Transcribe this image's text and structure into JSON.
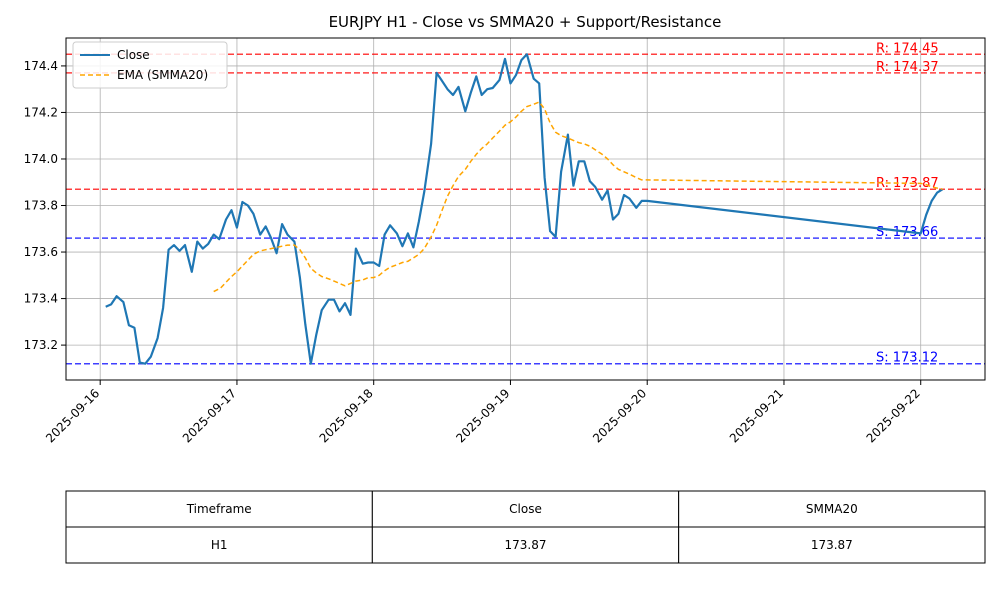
{
  "chart_data": {
    "type": "line",
    "title": "EURJPY H1 - Close vs SMMA20 + Support/Resistance",
    "xlabel": "",
    "ylabel": "",
    "x_tick_labels": [
      "2025-09-16",
      "2025-09-17",
      "2025-09-18",
      "2025-09-19",
      "2025-09-20",
      "2025-09-21",
      "2025-09-22"
    ],
    "y_ticks": [
      173.2,
      173.4,
      173.6,
      173.8,
      174.0,
      174.2,
      174.4
    ],
    "y_tick_labels": [
      "173.2",
      "173.4",
      "173.6",
      "173.8",
      "174.0",
      "174.2",
      "174.4"
    ],
    "ylim": [
      173.05,
      174.52
    ],
    "xlim_days": [
      -0.25,
      6.47
    ],
    "grid": true,
    "legend_position": "top-left",
    "series": [
      {
        "name": "Close",
        "color": "#1f77b4",
        "x": [
          0.04,
          0.08,
          0.12,
          0.17,
          0.21,
          0.25,
          0.29,
          0.33,
          0.37,
          0.42,
          0.46,
          0.5,
          0.54,
          0.58,
          0.62,
          0.67,
          0.71,
          0.75,
          0.79,
          0.83,
          0.87,
          0.92,
          0.96,
          1.0,
          1.04,
          1.08,
          1.12,
          1.17,
          1.21,
          1.25,
          1.29,
          1.33,
          1.37,
          1.42,
          1.46,
          1.5,
          1.54,
          1.58,
          1.62,
          1.67,
          1.71,
          1.75,
          1.79,
          1.83,
          1.87,
          1.92,
          1.96,
          2.0,
          2.04,
          2.08,
          2.12,
          2.17,
          2.21,
          2.25,
          2.29,
          2.33,
          2.37,
          2.42,
          2.46,
          2.5,
          2.54,
          2.58,
          2.62,
          2.67,
          2.71,
          2.75,
          2.79,
          2.83,
          2.87,
          2.92,
          2.96,
          3.0,
          3.04,
          3.08,
          3.12,
          3.17,
          3.21,
          3.25,
          3.29,
          3.33,
          3.37,
          3.42,
          3.46,
          3.5,
          3.54,
          3.58,
          3.62,
          3.67,
          3.71,
          3.75,
          3.79,
          3.83,
          3.87,
          3.92,
          3.96,
          4.0,
          6.0,
          6.04,
          6.08,
          6.12,
          6.16
        ],
        "values": [
          173.365,
          173.375,
          173.41,
          173.385,
          173.285,
          173.275,
          173.125,
          173.12,
          173.15,
          173.23,
          173.36,
          173.61,
          173.63,
          173.605,
          173.63,
          173.515,
          173.645,
          173.615,
          173.635,
          173.675,
          173.655,
          173.74,
          173.78,
          173.705,
          173.815,
          173.8,
          173.765,
          173.675,
          173.71,
          173.66,
          173.595,
          173.72,
          173.675,
          173.645,
          173.49,
          173.29,
          173.12,
          173.245,
          173.35,
          173.395,
          173.395,
          173.345,
          173.38,
          173.33,
          173.615,
          173.55,
          173.555,
          173.555,
          173.54,
          173.675,
          173.715,
          173.68,
          173.625,
          173.68,
          173.62,
          173.73,
          173.86,
          174.065,
          174.37,
          174.335,
          174.3,
          174.275,
          174.31,
          174.205,
          174.285,
          174.355,
          174.275,
          174.3,
          174.305,
          174.34,
          174.43,
          174.325,
          174.36,
          174.425,
          174.45,
          174.345,
          174.325,
          173.92,
          173.69,
          173.665,
          173.945,
          174.105,
          173.885,
          173.99,
          173.99,
          173.905,
          173.88,
          173.825,
          173.865,
          173.74,
          173.765,
          173.845,
          173.83,
          173.79,
          173.82,
          173.82,
          173.68,
          173.76,
          173.82,
          173.855,
          173.87
        ]
      },
      {
        "name": "EMA (SMMA20)",
        "color": "#ffa500",
        "x": [
          0.83,
          0.88,
          0.92,
          0.96,
          1.0,
          1.04,
          1.08,
          1.12,
          1.17,
          1.21,
          1.25,
          1.29,
          1.33,
          1.37,
          1.42,
          1.46,
          1.5,
          1.54,
          1.58,
          1.62,
          1.67,
          1.71,
          1.75,
          1.79,
          1.83,
          1.87,
          1.92,
          1.96,
          2.0,
          2.04,
          2.08,
          2.12,
          2.17,
          2.21,
          2.25,
          2.29,
          2.33,
          2.37,
          2.42,
          2.46,
          2.5,
          2.54,
          2.58,
          2.62,
          2.67,
          2.71,
          2.75,
          2.79,
          2.83,
          2.87,
          2.92,
          2.96,
          3.0,
          3.04,
          3.08,
          3.12,
          3.17,
          3.21,
          3.25,
          3.29,
          3.33,
          3.37,
          3.42,
          3.46,
          3.5,
          3.54,
          3.58,
          3.62,
          3.67,
          3.71,
          3.75,
          3.79,
          3.83,
          3.87,
          3.92,
          3.96,
          4.0,
          6.0,
          6.04,
          6.08,
          6.12,
          6.16
        ],
        "values": [
          173.43,
          173.445,
          173.47,
          173.495,
          173.515,
          173.54,
          173.565,
          173.59,
          173.605,
          173.61,
          173.615,
          173.62,
          173.625,
          173.63,
          173.63,
          173.61,
          173.575,
          173.53,
          173.51,
          173.495,
          173.485,
          173.475,
          173.465,
          173.455,
          173.465,
          173.475,
          173.48,
          173.49,
          173.49,
          173.5,
          173.52,
          173.535,
          173.545,
          173.555,
          173.56,
          173.575,
          173.59,
          173.615,
          173.665,
          173.715,
          173.78,
          173.84,
          173.885,
          173.925,
          173.955,
          173.99,
          174.02,
          174.045,
          174.065,
          174.09,
          174.12,
          174.145,
          174.16,
          174.18,
          174.205,
          174.225,
          174.235,
          174.245,
          174.215,
          174.155,
          174.115,
          174.1,
          174.09,
          174.08,
          174.07,
          174.065,
          174.055,
          174.04,
          174.02,
          174.0,
          173.975,
          173.955,
          173.945,
          173.935,
          173.92,
          173.91,
          173.91,
          173.895,
          173.89,
          173.88,
          173.875,
          173.87
        ]
      }
    ],
    "levels": [
      {
        "type": "resistance",
        "value": 174.45,
        "label": "R: 174.45",
        "color": "#ff0000"
      },
      {
        "type": "resistance",
        "value": 174.37,
        "label": "R: 174.37",
        "color": "#ff0000"
      },
      {
        "type": "resistance",
        "value": 173.87,
        "label": "R: 173.87",
        "color": "#ff0000"
      },
      {
        "type": "support",
        "value": 173.66,
        "label": "S: 173.66",
        "color": "#0000ff"
      },
      {
        "type": "support",
        "value": 173.12,
        "label": "S: 173.12",
        "color": "#0000ff"
      }
    ],
    "table": {
      "headers": [
        "Timeframe",
        "Close",
        "SMMA20"
      ],
      "rows": [
        [
          "H1",
          "173.87",
          "173.87"
        ]
      ]
    }
  }
}
